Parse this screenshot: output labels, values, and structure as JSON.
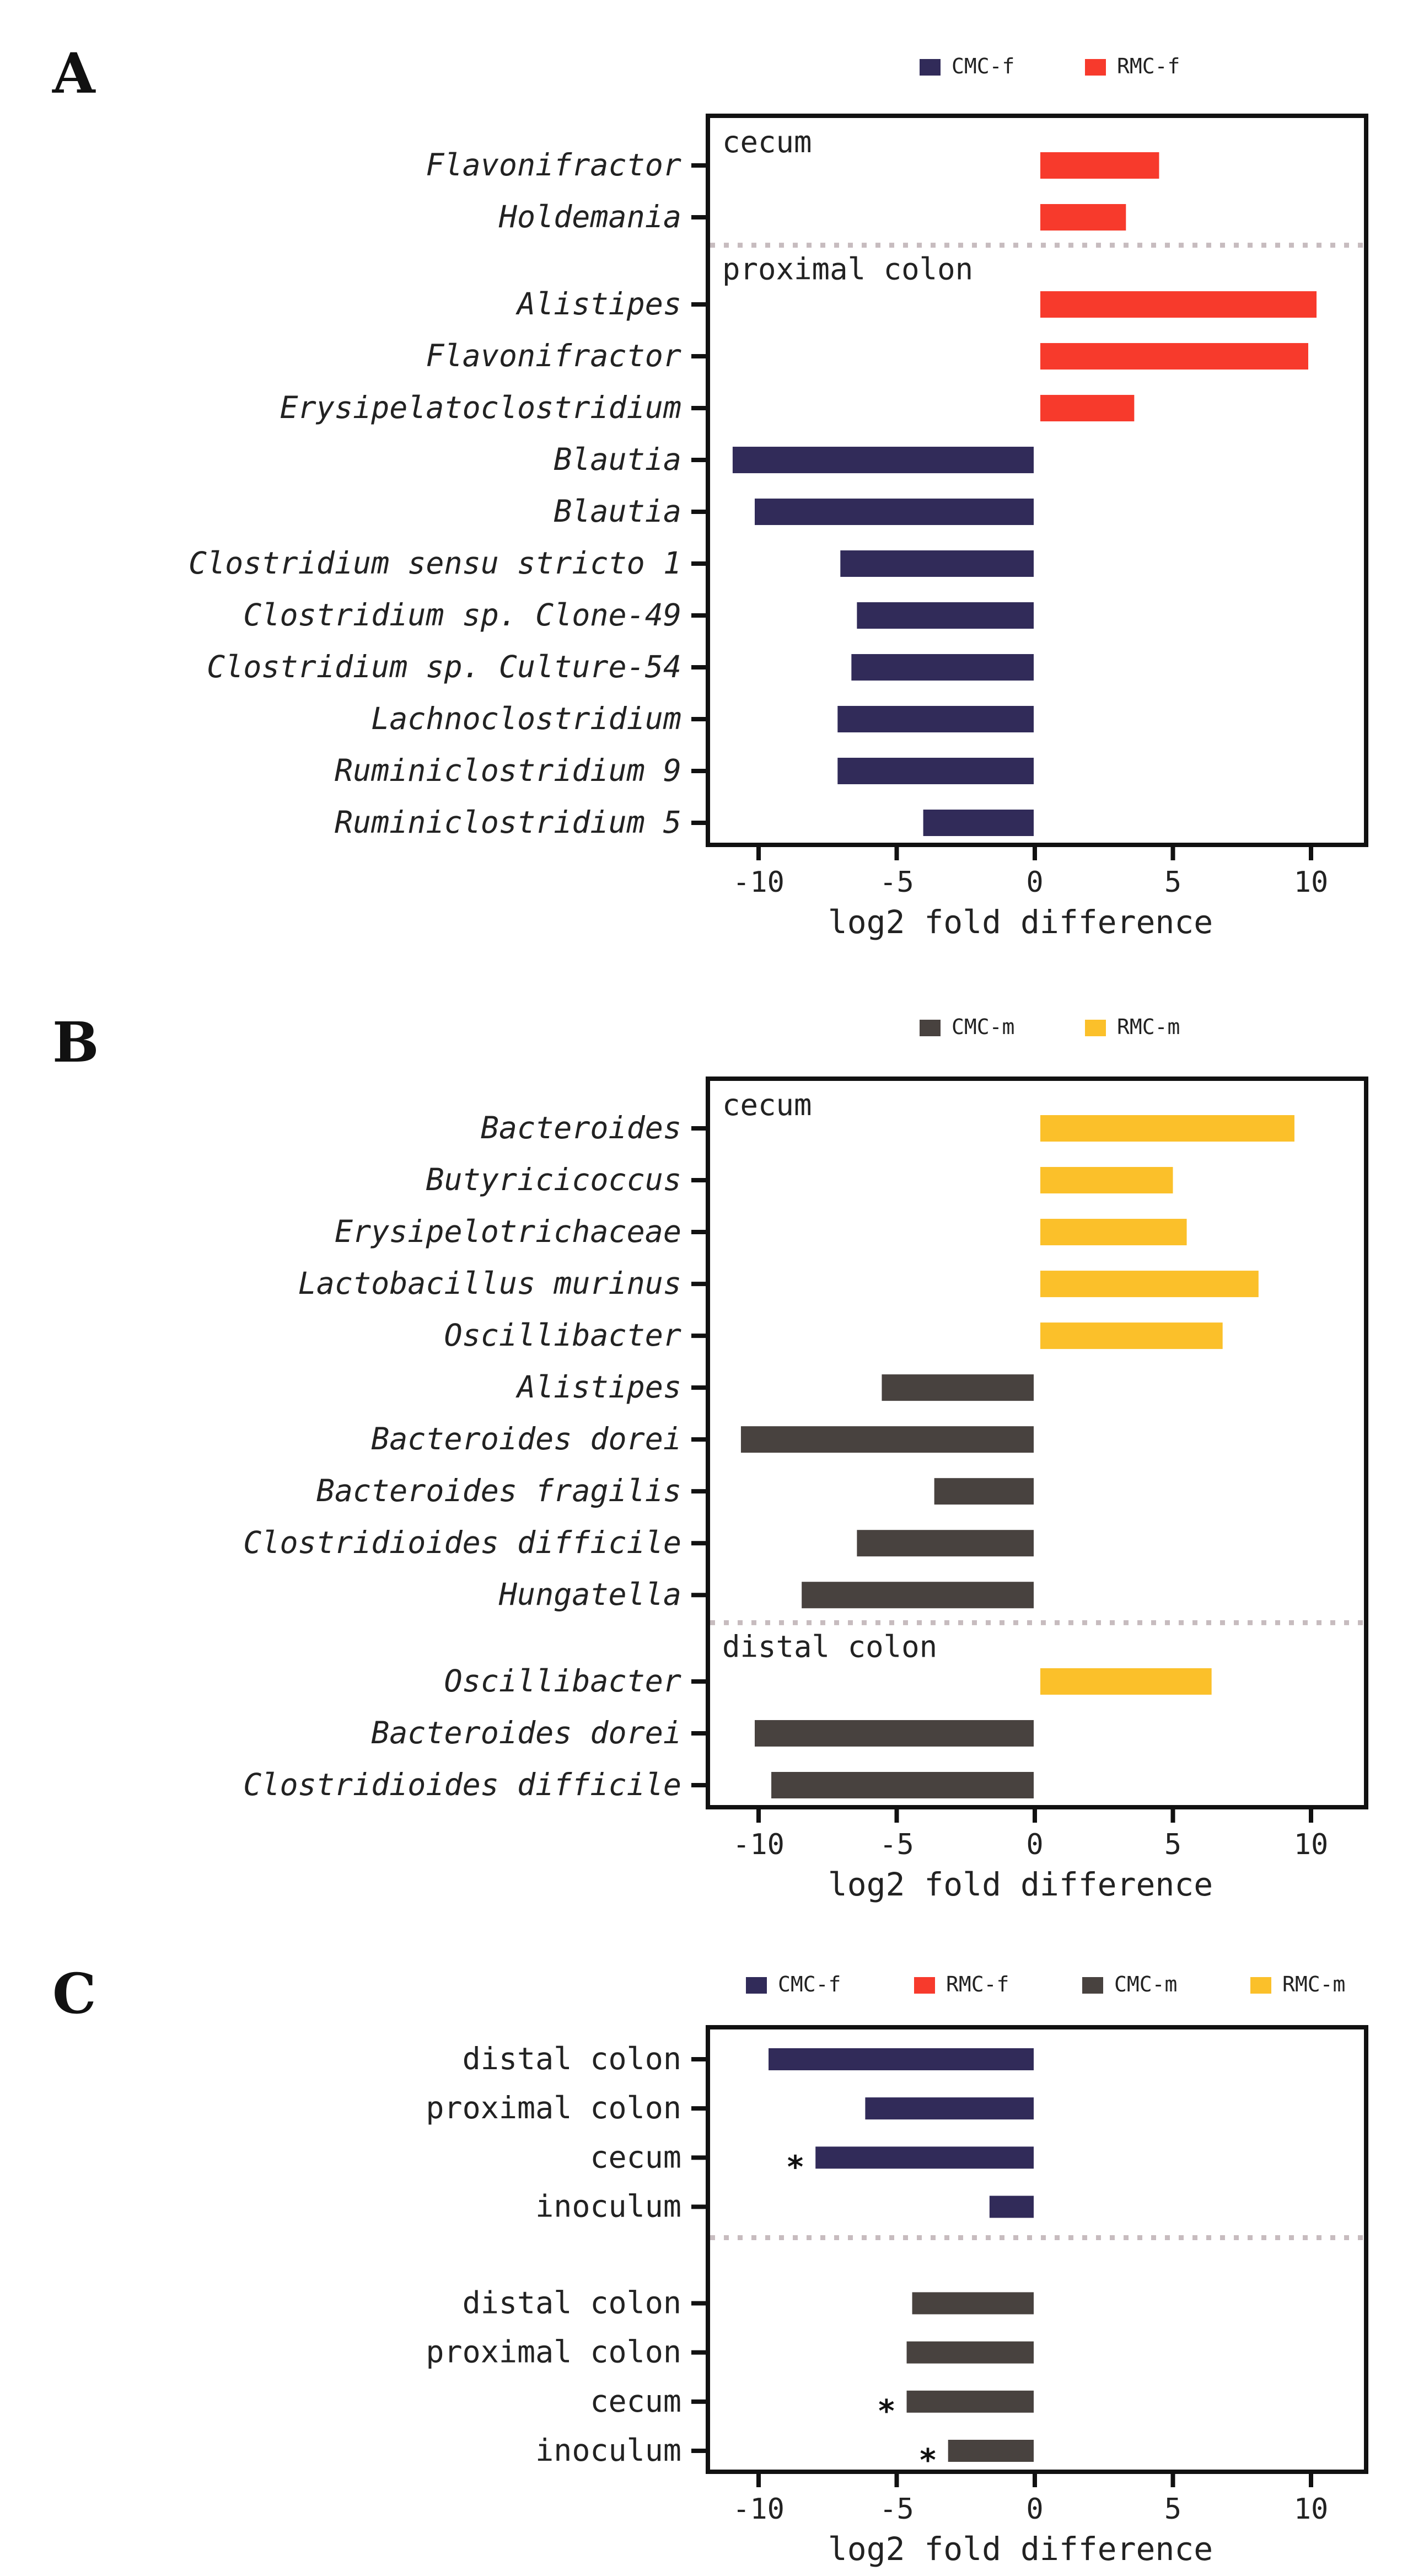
{
  "colors": {
    "CMC-f": "#312b59",
    "RMC-f": "#f73a2c",
    "CMC-m": "#48423f",
    "RMC-m": "#fbc02a",
    "axis": "#111111",
    "divider": "#c7bcbf"
  },
  "chart_data": [
    {
      "panel": "A",
      "type": "bar",
      "orientation": "horizontal",
      "xlabel": "log2 fold difference",
      "xlim": [
        -11.8,
        11.8
      ],
      "xticks": [
        -10,
        -5,
        0,
        5,
        10
      ],
      "italic_labels": true,
      "legend": [
        {
          "name": "CMC-f",
          "color_key": "CMC-f"
        },
        {
          "name": "RMC-f",
          "color_key": "RMC-f"
        }
      ],
      "groups": [
        {
          "name": "cecum",
          "bars": [
            {
              "label": "Flavonifractor",
              "value": 4.5,
              "series": "RMC-f"
            },
            {
              "label": "Holdemania",
              "value": 3.3,
              "series": "RMC-f"
            }
          ]
        },
        {
          "name": "proximal colon",
          "bars": [
            {
              "label": "Alistipes",
              "value": 10.2,
              "series": "RMC-f"
            },
            {
              "label": "Flavonifractor",
              "value": 9.9,
              "series": "RMC-f"
            },
            {
              "label": "Erysipelatoclostridium",
              "value": 3.6,
              "series": "RMC-f"
            },
            {
              "label": "Blautia",
              "value": -10.9,
              "series": "CMC-f"
            },
            {
              "label": "Blautia",
              "value": -10.1,
              "series": "CMC-f"
            },
            {
              "label": "Clostridium sensu stricto 1",
              "value": -7.0,
              "series": "CMC-f"
            },
            {
              "label": "Clostridium sp. Clone-49",
              "value": -6.4,
              "series": "CMC-f"
            },
            {
              "label": "Clostridium sp. Culture-54",
              "value": -6.6,
              "series": "CMC-f"
            },
            {
              "label": "Lachnoclostridium",
              "value": -7.1,
              "series": "CMC-f"
            },
            {
              "label": "Ruminiclostridium 9",
              "value": -7.1,
              "series": "CMC-f"
            },
            {
              "label": "Ruminiclostridium 5",
              "value": -4.0,
              "series": "CMC-f"
            }
          ]
        }
      ]
    },
    {
      "panel": "B",
      "type": "bar",
      "orientation": "horizontal",
      "xlabel": "log2 fold difference",
      "xlim": [
        -11.8,
        11.8
      ],
      "xticks": [
        -10,
        -5,
        0,
        5,
        10
      ],
      "italic_labels": true,
      "legend": [
        {
          "name": "CMC-m",
          "color_key": "CMC-m"
        },
        {
          "name": "RMC-m",
          "color_key": "RMC-m"
        }
      ],
      "groups": [
        {
          "name": "cecum",
          "bars": [
            {
              "label": "Bacteroides",
              "value": 9.4,
              "series": "RMC-m"
            },
            {
              "label": "Butyricicoccus",
              "value": 5.0,
              "series": "RMC-m"
            },
            {
              "label": "Erysipelotrichaceae",
              "value": 5.5,
              "series": "RMC-m"
            },
            {
              "label": "Lactobacillus murinus",
              "value": 8.1,
              "series": "RMC-m"
            },
            {
              "label": "Oscillibacter",
              "value": 6.8,
              "series": "RMC-m"
            },
            {
              "label": "Alistipes",
              "value": -5.5,
              "series": "CMC-m"
            },
            {
              "label": "Bacteroides dorei",
              "value": -10.6,
              "series": "CMC-m"
            },
            {
              "label": "Bacteroides fragilis",
              "value": -3.6,
              "series": "CMC-m"
            },
            {
              "label": "Clostridioides difficile",
              "value": -6.4,
              "series": "CMC-m"
            },
            {
              "label": "Hungatella",
              "value": -8.4,
              "series": "CMC-m"
            }
          ]
        },
        {
          "name": "distal colon",
          "bars": [
            {
              "label": "Oscillibacter",
              "value": 6.4,
              "series": "RMC-m"
            },
            {
              "label": "Bacteroides dorei",
              "value": -10.1,
              "series": "CMC-m"
            },
            {
              "label": "Clostridioides difficile",
              "value": -9.5,
              "series": "CMC-m"
            }
          ]
        }
      ]
    },
    {
      "panel": "C",
      "type": "bar",
      "orientation": "horizontal",
      "xlabel": "log2 fold difference",
      "xlim": [
        -11.8,
        11.8
      ],
      "xticks": [
        -10,
        -5,
        0,
        5,
        10
      ],
      "italic_labels": false,
      "legend": [
        {
          "name": "CMC-f",
          "color_key": "CMC-f"
        },
        {
          "name": "RMC-f",
          "color_key": "RMC-f"
        },
        {
          "name": "CMC-m",
          "color_key": "CMC-m"
        },
        {
          "name": "RMC-m",
          "color_key": "RMC-m"
        }
      ],
      "groups": [
        {
          "name": "",
          "bars": [
            {
              "label": "distal colon",
              "value": -9.6,
              "series": "CMC-f",
              "marker": ""
            },
            {
              "label": "proximal colon",
              "value": -6.1,
              "series": "CMC-f",
              "marker": ""
            },
            {
              "label": "cecum",
              "value": -7.9,
              "series": "CMC-f",
              "marker": "*"
            },
            {
              "label": "inoculum",
              "value": -1.6,
              "series": "CMC-f",
              "marker": ""
            }
          ]
        },
        {
          "name": "",
          "bars": [
            {
              "label": "distal colon",
              "value": -4.4,
              "series": "CMC-m",
              "marker": ""
            },
            {
              "label": "proximal colon",
              "value": -4.6,
              "series": "CMC-m",
              "marker": ""
            },
            {
              "label": "cecum",
              "value": -4.6,
              "series": "CMC-m",
              "marker": "*"
            },
            {
              "label": "inoculum",
              "value": -3.1,
              "series": "CMC-m",
              "marker": "*"
            }
          ]
        }
      ]
    }
  ]
}
